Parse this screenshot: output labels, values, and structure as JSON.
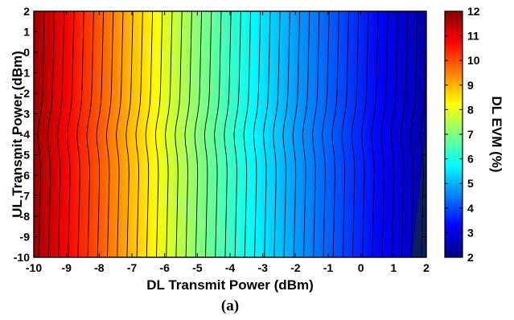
{
  "chart_data": {
    "type": "heatmap",
    "subtype": "filled-contour",
    "caption": "(a)",
    "xlabel": "DL Transmit Power (dBm)",
    "ylabel": "UL Transmit Power (dBm)",
    "colorbar_label": "DL EVM (%)",
    "xlim": [
      -10,
      2
    ],
    "ylim": [
      -10,
      2
    ],
    "clim": [
      2,
      12
    ],
    "x_ticks": [
      "-10",
      "-9",
      "-8",
      "-7",
      "-6",
      "-5",
      "-4",
      "-3",
      "-2",
      "-1",
      "0",
      "1",
      "2"
    ],
    "y_ticks": [
      "2",
      "1",
      "0",
      "-1",
      "-2",
      "-3",
      "-4",
      "-5",
      "-6",
      "-7",
      "-8",
      "-9",
      "-10"
    ],
    "colorbar_ticks": [
      "12",
      "11",
      "10",
      "9",
      "8",
      "7",
      "6",
      "5",
      "4",
      "3",
      "2"
    ],
    "colormap": "jet",
    "contour_color": "#000000",
    "contour_levels_count": 40,
    "grid": false,
    "evm_profile": {
      "dl_power_dbm": [
        -10,
        -9,
        -8,
        -7,
        -6,
        -5,
        -4,
        -3,
        -2,
        -1,
        0,
        1,
        2
      ],
      "dl_evm_percent": [
        11.7,
        10.8,
        9.9,
        8.9,
        8.0,
        7.1,
        6.3,
        5.5,
        4.8,
        4.2,
        3.6,
        3.0,
        2.4
      ]
    }
  }
}
